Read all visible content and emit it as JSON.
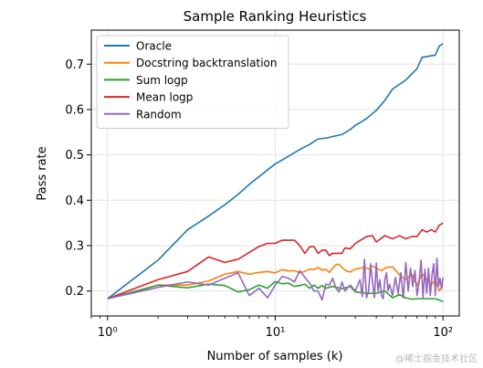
{
  "chart_data": {
    "type": "line",
    "title": "Sample Ranking Heuristics",
    "xlabel": "Number of samples (k)",
    "ylabel": "Pass rate",
    "xscale": "log",
    "xlim": [
      0.8,
      125
    ],
    "ylim": [
      0.145,
      0.775
    ],
    "xticks": [
      {
        "value": 1,
        "label": "10⁰"
      },
      {
        "value": 10,
        "label": "10¹"
      },
      {
        "value": 100,
        "label": "10²"
      }
    ],
    "yticks": [
      {
        "value": 0.2,
        "label": "0.2"
      },
      {
        "value": 0.3,
        "label": "0.3"
      },
      {
        "value": 0.4,
        "label": "0.4"
      },
      {
        "value": 0.5,
        "label": "0.5"
      },
      {
        "value": 0.6,
        "label": "0.6"
      },
      {
        "value": 0.7,
        "label": "0.7"
      }
    ],
    "grid": true,
    "legend": "top-left",
    "series": [
      {
        "name": "Oracle",
        "color": "#1f77b4",
        "points": [
          [
            1,
            0.183
          ],
          [
            2,
            0.268
          ],
          [
            3,
            0.335
          ],
          [
            4,
            0.365
          ],
          [
            5,
            0.39
          ],
          [
            6,
            0.413
          ],
          [
            7,
            0.435
          ],
          [
            8,
            0.452
          ],
          [
            9,
            0.467
          ],
          [
            10,
            0.48
          ],
          [
            12,
            0.497
          ],
          [
            14,
            0.512
          ],
          [
            16,
            0.523
          ],
          [
            18,
            0.535
          ],
          [
            20,
            0.537
          ],
          [
            25,
            0.545
          ],
          [
            28,
            0.556
          ],
          [
            30,
            0.565
          ],
          [
            35,
            0.58
          ],
          [
            40,
            0.598
          ],
          [
            45,
            0.62
          ],
          [
            50,
            0.645
          ],
          [
            60,
            0.665
          ],
          [
            70,
            0.69
          ],
          [
            75,
            0.715
          ],
          [
            90,
            0.72
          ],
          [
            95,
            0.74
          ],
          [
            100,
            0.745
          ]
        ]
      },
      {
        "name": "Docstring backtranslation",
        "color": "#ff7f0e",
        "points": [
          [
            1,
            0.183
          ],
          [
            2,
            0.213
          ],
          [
            3,
            0.213
          ],
          [
            4,
            0.222
          ],
          [
            5,
            0.237
          ],
          [
            6,
            0.243
          ],
          [
            7,
            0.237
          ],
          [
            8,
            0.241
          ],
          [
            9,
            0.243
          ],
          [
            10,
            0.24
          ],
          [
            11,
            0.247
          ],
          [
            12,
            0.244
          ],
          [
            13,
            0.245
          ],
          [
            14,
            0.24
          ],
          [
            15,
            0.243
          ],
          [
            16,
            0.248
          ],
          [
            17,
            0.247
          ],
          [
            18,
            0.252
          ],
          [
            19,
            0.246
          ],
          [
            20,
            0.248
          ],
          [
            21,
            0.241
          ],
          [
            22,
            0.25
          ],
          [
            23,
            0.258
          ],
          [
            24,
            0.259
          ],
          [
            25,
            0.252
          ],
          [
            26,
            0.246
          ],
          [
            27,
            0.243
          ],
          [
            28,
            0.242
          ],
          [
            30,
            0.248
          ],
          [
            32,
            0.25
          ],
          [
            34,
            0.253
          ],
          [
            36,
            0.248
          ],
          [
            38,
            0.255
          ],
          [
            40,
            0.25
          ],
          [
            43,
            0.245
          ],
          [
            46,
            0.252
          ],
          [
            50,
            0.253
          ],
          [
            55,
            0.236
          ],
          [
            60,
            0.225
          ],
          [
            65,
            0.238
          ],
          [
            70,
            0.213
          ],
          [
            75,
            0.238
          ],
          [
            80,
            0.225
          ],
          [
            85,
            0.213
          ],
          [
            90,
            0.225
          ],
          [
            95,
            0.2
          ],
          [
            100,
            0.213
          ]
        ]
      },
      {
        "name": "Sum logp",
        "color": "#2ca02c",
        "points": [
          [
            1,
            0.183
          ],
          [
            2,
            0.213
          ],
          [
            3,
            0.207
          ],
          [
            4,
            0.215
          ],
          [
            5,
            0.212
          ],
          [
            6,
            0.198
          ],
          [
            7,
            0.203
          ],
          [
            8,
            0.213
          ],
          [
            9,
            0.206
          ],
          [
            10,
            0.221
          ],
          [
            11,
            0.216
          ],
          [
            12,
            0.217
          ],
          [
            13,
            0.21
          ],
          [
            14,
            0.212
          ],
          [
            15,
            0.215
          ],
          [
            16,
            0.206
          ],
          [
            17,
            0.213
          ],
          [
            18,
            0.206
          ],
          [
            19,
            0.212
          ],
          [
            20,
            0.206
          ],
          [
            22,
            0.21
          ],
          [
            25,
            0.205
          ],
          [
            28,
            0.21
          ],
          [
            30,
            0.198
          ],
          [
            35,
            0.195
          ],
          [
            40,
            0.195
          ],
          [
            45,
            0.2
          ],
          [
            50,
            0.185
          ],
          [
            55,
            0.192
          ],
          [
            60,
            0.185
          ],
          [
            65,
            0.182
          ],
          [
            70,
            0.183
          ],
          [
            80,
            0.183
          ],
          [
            90,
            0.183
          ],
          [
            100,
            0.177
          ]
        ]
      },
      {
        "name": "Mean logp",
        "color": "#d62728",
        "points": [
          [
            1,
            0.183
          ],
          [
            2,
            0.225
          ],
          [
            3,
            0.243
          ],
          [
            4,
            0.275
          ],
          [
            5,
            0.263
          ],
          [
            6,
            0.27
          ],
          [
            7,
            0.285
          ],
          [
            8,
            0.298
          ],
          [
            9,
            0.305
          ],
          [
            10,
            0.305
          ],
          [
            11,
            0.312
          ],
          [
            13,
            0.312
          ],
          [
            14,
            0.3
          ],
          [
            15,
            0.283
          ],
          [
            16,
            0.297
          ],
          [
            17,
            0.298
          ],
          [
            18,
            0.283
          ],
          [
            19,
            0.29
          ],
          [
            20,
            0.29
          ],
          [
            21,
            0.278
          ],
          [
            22,
            0.283
          ],
          [
            25,
            0.283
          ],
          [
            26,
            0.295
          ],
          [
            28,
            0.293
          ],
          [
            30,
            0.305
          ],
          [
            35,
            0.32
          ],
          [
            38,
            0.322
          ],
          [
            40,
            0.308
          ],
          [
            45,
            0.322
          ],
          [
            50,
            0.315
          ],
          [
            55,
            0.322
          ],
          [
            60,
            0.315
          ],
          [
            65,
            0.32
          ],
          [
            70,
            0.32
          ],
          [
            75,
            0.335
          ],
          [
            80,
            0.33
          ],
          [
            85,
            0.335
          ],
          [
            90,
            0.33
          ],
          [
            95,
            0.345
          ],
          [
            100,
            0.35
          ]
        ]
      },
      {
        "name": "Random",
        "color": "#9467bd",
        "points": [
          [
            1,
            0.183
          ],
          [
            2,
            0.208
          ],
          [
            3,
            0.22
          ],
          [
            4,
            0.213
          ],
          [
            5,
            0.228
          ],
          [
            6,
            0.24
          ],
          [
            7,
            0.19
          ],
          [
            8,
            0.206
          ],
          [
            9,
            0.185
          ],
          [
            10,
            0.213
          ],
          [
            11,
            0.232
          ],
          [
            12,
            0.228
          ],
          [
            13,
            0.22
          ],
          [
            14,
            0.245
          ],
          [
            15,
            0.23
          ],
          [
            16,
            0.218
          ],
          [
            17,
            0.2
          ],
          [
            18,
            0.2
          ],
          [
            19,
            0.18
          ],
          [
            20,
            0.215
          ],
          [
            21,
            0.213
          ],
          [
            22,
            0.228
          ],
          [
            23,
            0.206
          ],
          [
            24,
            0.198
          ],
          [
            25,
            0.22
          ],
          [
            26,
            0.2
          ],
          [
            28,
            0.213
          ],
          [
            30,
            0.2
          ],
          [
            32,
            0.225
          ],
          [
            33,
            0.188
          ],
          [
            34,
            0.27
          ],
          [
            35,
            0.185
          ],
          [
            36,
            0.2
          ],
          [
            37,
            0.26
          ],
          [
            38,
            0.22
          ],
          [
            39,
            0.185
          ],
          [
            40,
            0.262
          ],
          [
            41,
            0.2
          ],
          [
            42,
            0.225
          ],
          [
            43,
            0.19
          ],
          [
            44,
            0.183
          ],
          [
            45,
            0.225
          ],
          [
            46,
            0.24
          ],
          [
            47,
            0.2
          ],
          [
            48,
            0.215
          ],
          [
            50,
            0.19
          ],
          [
            52,
            0.23
          ],
          [
            54,
            0.195
          ],
          [
            56,
            0.24
          ],
          [
            58,
            0.185
          ],
          [
            60,
            0.263
          ],
          [
            62,
            0.2
          ],
          [
            64,
            0.25
          ],
          [
            66,
            0.21
          ],
          [
            68,
            0.245
          ],
          [
            70,
            0.19
          ],
          [
            72,
            0.22
          ],
          [
            74,
            0.268
          ],
          [
            76,
            0.185
          ],
          [
            78,
            0.248
          ],
          [
            80,
            0.195
          ],
          [
            82,
            0.25
          ],
          [
            84,
            0.19
          ],
          [
            86,
            0.235
          ],
          [
            88,
            0.26
          ],
          [
            90,
            0.19
          ],
          [
            92,
            0.272
          ],
          [
            94,
            0.21
          ],
          [
            96,
            0.228
          ],
          [
            98,
            0.205
          ],
          [
            100,
            0.23
          ]
        ]
      }
    ]
  },
  "watermark": "@稀土掘金技术社区"
}
